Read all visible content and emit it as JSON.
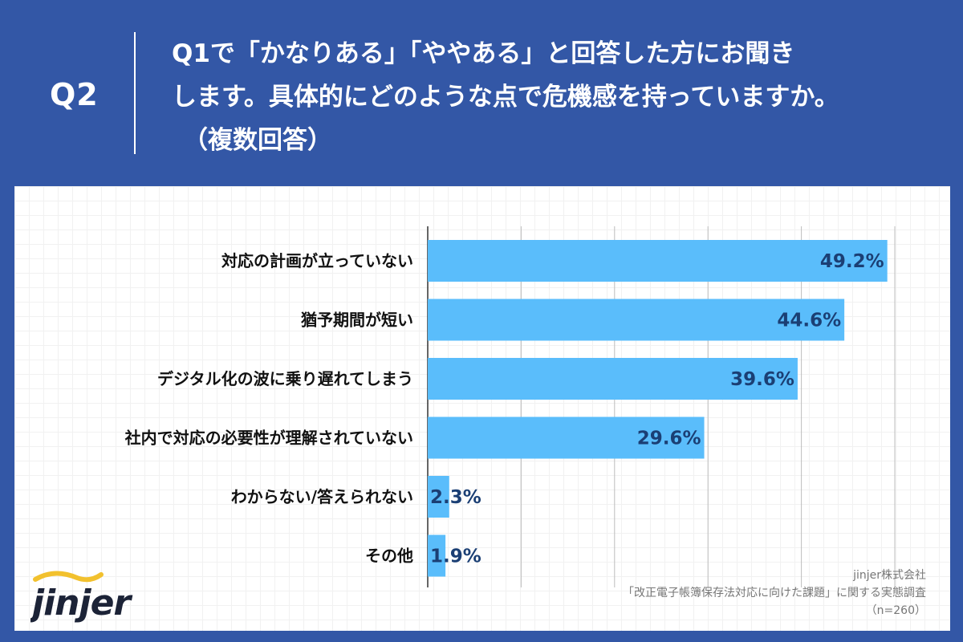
{
  "header": {
    "question_no": "Q2",
    "question_lines": [
      "Q1で「かなりある」「ややある」と回答した方にお聞き",
      "します。具体的にどのような点で危機感を持っていますか。",
      "（複数回答）"
    ]
  },
  "chart_data": {
    "type": "bar",
    "orientation": "horizontal",
    "categories": [
      "対応の計画が立っていない",
      "猶予期間が短い",
      "デジタル化の波に乗り遅れてしまう",
      "社内で対応の必要性が理解されていない",
      "わからない/答えられない",
      "その他"
    ],
    "values": [
      49.2,
      44.6,
      39.6,
      29.6,
      2.3,
      1.9
    ],
    "value_labels": [
      "49.2%",
      "44.6%",
      "39.6%",
      "29.6%",
      "2.3%",
      "1.9%"
    ],
    "xlim": [
      0,
      50
    ],
    "grid": true,
    "bar_color": "#5abdfb",
    "label_color": "#1b3f74"
  },
  "brand": {
    "logo_text": "jinjer"
  },
  "source": {
    "company": "jinjer株式会社",
    "survey": "「改正電子帳簿保存法対応に向けた課題」に関する実態調査",
    "sample": "（n=260）"
  },
  "colors": {
    "background": "#3357a6",
    "panel": "#ffffff",
    "logo_accent": "#f2c12e"
  }
}
